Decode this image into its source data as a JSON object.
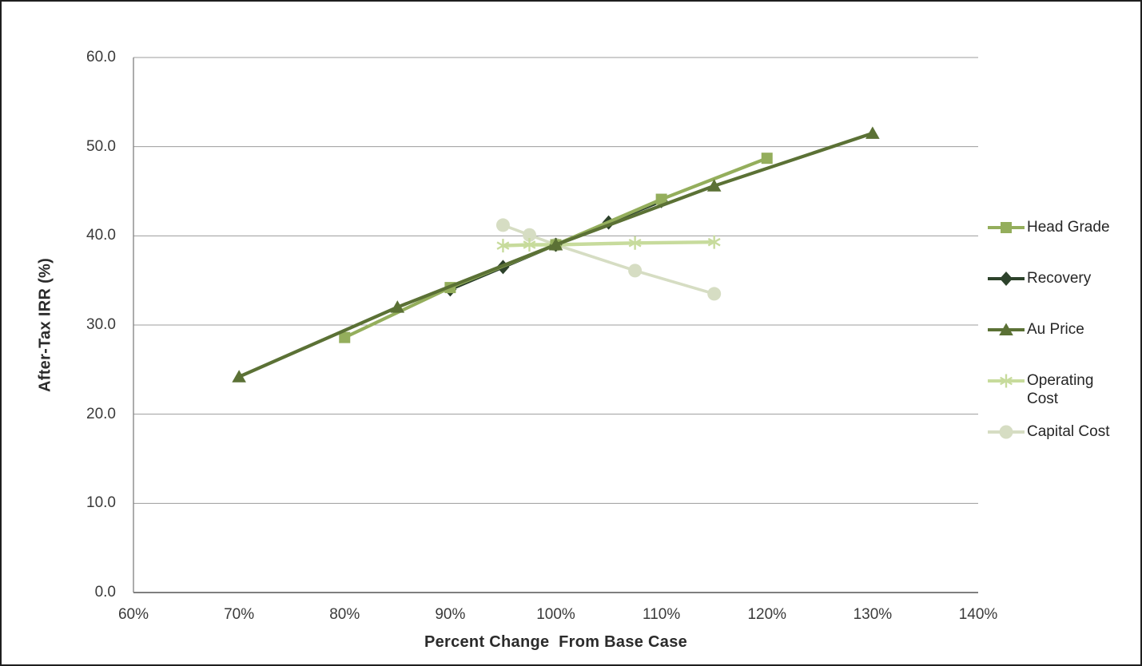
{
  "chart_data": {
    "type": "line",
    "title": "",
    "xlabel": "Percent Change  From Base Case",
    "ylabel": "After-Tax IRR (%)",
    "xlim": [
      60,
      140
    ],
    "ylim": [
      0,
      60
    ],
    "x_ticks": [
      60,
      70,
      80,
      90,
      100,
      110,
      120,
      130,
      140
    ],
    "x_tick_labels": [
      "60%",
      "70%",
      "80%",
      "90%",
      "100%",
      "110%",
      "120%",
      "130%",
      "140%"
    ],
    "y_ticks": [
      0,
      10,
      20,
      30,
      40,
      50,
      60
    ],
    "y_tick_labels": [
      "0.0",
      "10.0",
      "20.0",
      "30.0",
      "40.0",
      "50.0",
      "60.0"
    ],
    "grid": "horizontal",
    "legend_position": "right",
    "axis_color": "#7f7f7f",
    "gridline_color": "#9c9c9c",
    "series": [
      {
        "name": "Head Grade",
        "marker": "square",
        "color": "#94ae5c",
        "x": [
          80,
          90,
          100,
          110,
          120
        ],
        "y": [
          28.6,
          34.2,
          39.0,
          44.1,
          48.7
        ]
      },
      {
        "name": "Recovery",
        "marker": "diamond",
        "color": "#2d422b",
        "x": [
          90,
          95,
          100,
          105,
          110
        ],
        "y": [
          34.0,
          36.5,
          39.0,
          41.5,
          43.9
        ]
      },
      {
        "name": "Au Price",
        "marker": "triangle",
        "color": "#5b7135",
        "x": [
          70,
          85,
          100,
          115,
          130
        ],
        "y": [
          24.2,
          32.0,
          39.0,
          45.6,
          51.5
        ]
      },
      {
        "name": "Operating Cost",
        "marker": "asterisk",
        "color": "#c7db9c",
        "x": [
          95,
          97.5,
          100,
          107.5,
          115
        ],
        "y": [
          38.9,
          39.0,
          39.0,
          39.2,
          39.3
        ]
      },
      {
        "name": "Capital Cost",
        "marker": "circle",
        "color": "#d6ddc3",
        "x": [
          95,
          97.5,
          100,
          107.5,
          115
        ],
        "y": [
          41.2,
          40.1,
          39.0,
          36.1,
          33.5
        ]
      }
    ]
  }
}
